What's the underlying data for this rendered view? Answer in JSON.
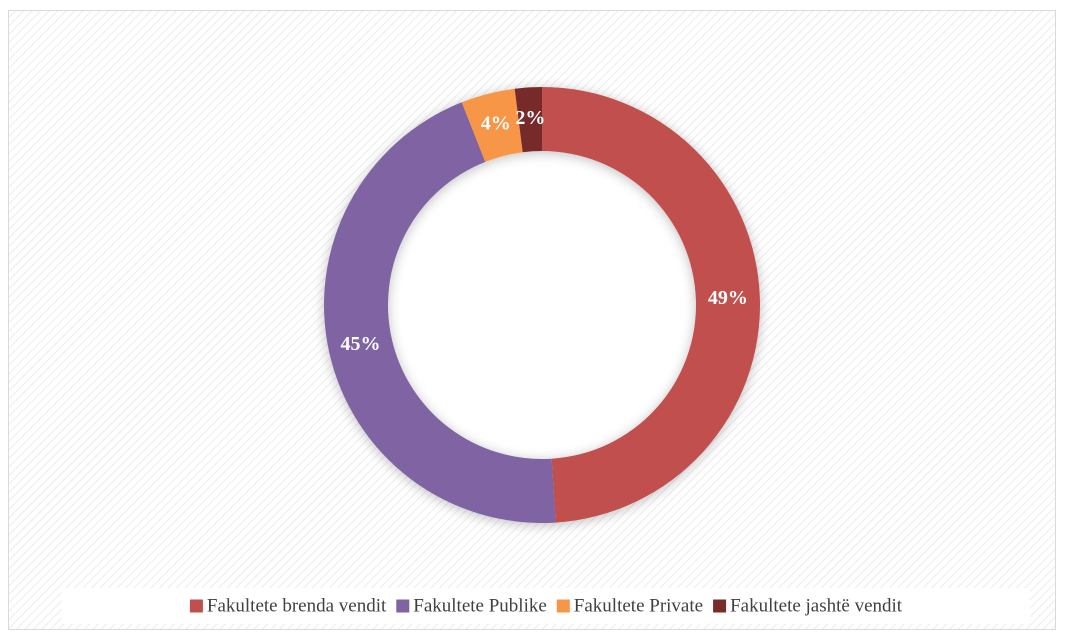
{
  "chart_data": {
    "type": "donut",
    "categories": [
      "Fakultete brenda vendit",
      "Fakultete Publike",
      "Fakultete Private",
      "Fakultete jashtë vendit"
    ],
    "values": [
      49,
      45,
      4,
      2
    ],
    "value_labels": [
      "49%",
      "45%",
      "4%",
      "2%"
    ],
    "colors": [
      "#c0504d",
      "#8064a2",
      "#f79646",
      "#772c2a"
    ],
    "legend": "bottom"
  }
}
